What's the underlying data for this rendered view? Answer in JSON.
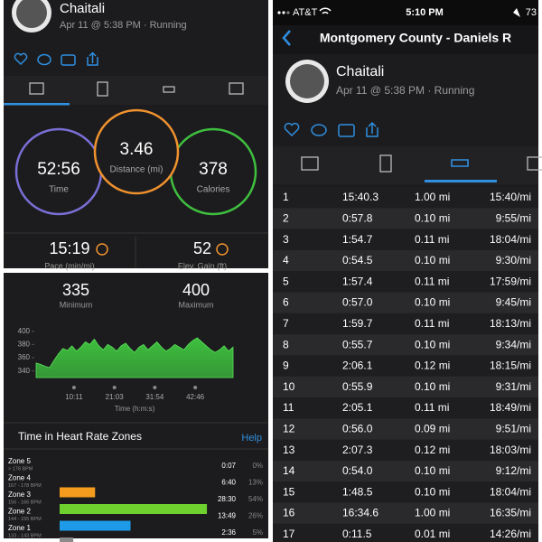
{
  "summary": {
    "name": "Chaitali",
    "activity": "Apr 11 @ 5:38 PM · Running",
    "stats": [
      {
        "value": "52:56",
        "label": "Time",
        "color": "#7a6fd6"
      },
      {
        "value": "3.46",
        "label": "Distance (mi)",
        "color": "#f0922e"
      },
      {
        "value": "378",
        "label": "Calories",
        "color": "#3fbf3f"
      }
    ],
    "pace": {
      "value": "15:19",
      "label": "Pace (min/mi)"
    },
    "elevation": {
      "value": "52",
      "label": "Elev. Gain (ft)"
    }
  },
  "heart_rate": {
    "min": {
      "value": 335,
      "label": "Minimum"
    },
    "max": {
      "value": 400,
      "label": "Maximum"
    },
    "chart_data": {
      "type": "area",
      "color": "#3ec03e",
      "values": [
        352,
        350,
        347,
        345,
        356,
        366,
        374,
        371,
        378,
        370,
        376,
        384,
        380,
        388,
        378,
        372,
        380,
        376,
        370,
        378,
        382,
        374,
        368,
        376,
        380,
        372,
        378,
        384,
        376,
        370,
        374,
        380,
        376,
        372,
        380,
        386,
        390,
        384,
        378,
        372,
        368,
        372,
        378,
        370,
        376
      ],
      "ylim": [
        330,
        405
      ],
      "yticks": [
        340,
        360,
        380,
        400
      ],
      "xlim": [
        0,
        3176
      ],
      "xticks": [
        {
          "value": 611,
          "label": "10:11"
        },
        {
          "value": 1263,
          "label": "21:03"
        },
        {
          "value": 1914,
          "label": "31:54"
        },
        {
          "value": 2566,
          "label": "42:46"
        }
      ],
      "xlabel": "Time (h:m:s)"
    },
    "zones_title": "Time in Heart Rate Zones",
    "help": "Help",
    "zones": [
      {
        "name": "Zone 5",
        "range": "> 178 BPM",
        "time": "0:07",
        "percent": 0,
        "percent_label": "0%",
        "color": "#e0473a"
      },
      {
        "name": "Zone 4",
        "range": "167 - 178 BPM",
        "time": "6:40",
        "percent": 13,
        "percent_label": "13%",
        "color": "#f39c1e"
      },
      {
        "name": "Zone 3",
        "range": "156 - 166 BPM",
        "time": "28:30",
        "percent": 54,
        "percent_label": "54%",
        "color": "#6fd12e"
      },
      {
        "name": "Zone 2",
        "range": "144 - 155 BPM",
        "time": "13:49",
        "percent": 26,
        "percent_label": "26%",
        "color": "#1e9be8"
      },
      {
        "name": "Zone 1",
        "range": "133 - 143 BPM",
        "time": "2:36",
        "percent": 5,
        "percent_label": "5%",
        "color": "#8a8a8a"
      }
    ]
  },
  "laps": {
    "status": {
      "carrier": "AT&T",
      "time": "5:10 PM",
      "battery": "73"
    },
    "title": "Montgomery County - Daniels R",
    "name": "Chaitali",
    "activity": "Apr 11 @ 5:38 PM · Running",
    "rows": [
      [
        "1",
        "15:40.3",
        "1.00 mi",
        "15:40/mi"
      ],
      [
        "2",
        "0:57.8",
        "0.10 mi",
        "9:55/mi"
      ],
      [
        "3",
        "1:54.7",
        "0.11 mi",
        "18:04/mi"
      ],
      [
        "4",
        "0:54.5",
        "0.10 mi",
        "9:30/mi"
      ],
      [
        "5",
        "1:57.4",
        "0.11 mi",
        "17:59/mi"
      ],
      [
        "6",
        "0:57.0",
        "0.10 mi",
        "9:45/mi"
      ],
      [
        "7",
        "1:59.7",
        "0.11 mi",
        "18:13/mi"
      ],
      [
        "8",
        "0:55.7",
        "0.10 mi",
        "9:34/mi"
      ],
      [
        "9",
        "2:06.1",
        "0.12 mi",
        "18:15/mi"
      ],
      [
        "10",
        "0:55.9",
        "0.10 mi",
        "9:31/mi"
      ],
      [
        "11",
        "2:05.1",
        "0.11 mi",
        "18:49/mi"
      ],
      [
        "12",
        "0:56.0",
        "0.09 mi",
        "9:51/mi"
      ],
      [
        "13",
        "2:07.3",
        "0.12 mi",
        "18:03/mi"
      ],
      [
        "14",
        "0:54.0",
        "0.10 mi",
        "9:12/mi"
      ],
      [
        "15",
        "1:48.5",
        "0.10 mi",
        "18:04/mi"
      ],
      [
        "16",
        "16:34.6",
        "1.00 mi",
        "16:35/mi"
      ],
      [
        "17",
        "0:11.5",
        "0.01 mi",
        "14:26/mi"
      ]
    ]
  }
}
